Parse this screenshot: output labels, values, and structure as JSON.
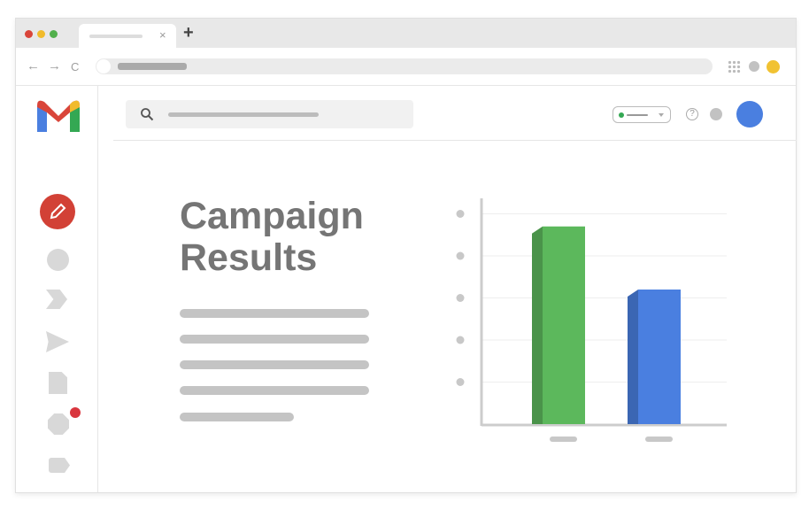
{
  "browser": {
    "traffic_lights": [
      "#d9453a",
      "#f1bb2c",
      "#52b04c"
    ],
    "new_tab_label": "+",
    "close_tab_label": "×",
    "nav": {
      "back": "←",
      "forward": "→",
      "reload": "C"
    }
  },
  "header": {
    "avatar_color": "#4a7fe0",
    "help_label": "?"
  },
  "content": {
    "title_line1": "Campaign",
    "title_line2": "Results"
  },
  "sidebar": {
    "icons": [
      "compose-icon",
      "inbox-icon",
      "label-important-icon",
      "send-icon",
      "draft-icon",
      "snooze-icon",
      "label-icon"
    ],
    "compose_color": "#d24136",
    "badge_color": "#d9363e"
  },
  "chart_data": {
    "type": "bar",
    "categories": [
      "",
      ""
    ],
    "values": [
      4.7,
      3.2
    ],
    "colors": [
      "#5cb85c",
      "#4a7fe0"
    ],
    "ylim": [
      0,
      5
    ],
    "grid": true,
    "title": "",
    "xlabel": "",
    "ylabel": ""
  }
}
